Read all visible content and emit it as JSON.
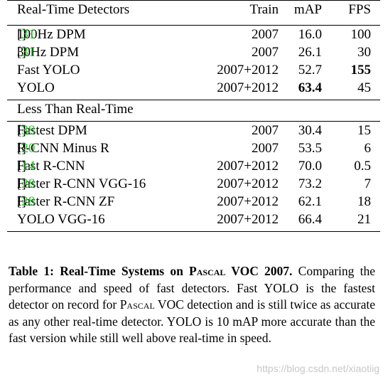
{
  "table": {
    "header": {
      "section": "Real-Time Detectors",
      "train": "Train",
      "map": "mAP",
      "fps": "FPS"
    },
    "section2_title": "Less Than Real-Time",
    "realtime_rows": [
      {
        "name": "100Hz DPM ",
        "ref": "31",
        "train": "2007",
        "map": "16.0",
        "fps": "100"
      },
      {
        "name": "30Hz DPM ",
        "ref": "31",
        "train": "2007",
        "map": "26.1",
        "fps": "30"
      },
      {
        "name": "Fast YOLO",
        "ref": "",
        "train": "2007+2012",
        "map": "52.7",
        "fps": "155"
      },
      {
        "name": "YOLO",
        "ref": "",
        "train": "2007+2012",
        "map": "63.4",
        "fps": "45"
      }
    ],
    "slow_rows": [
      {
        "name": "Fastest DPM ",
        "ref": "38",
        "train": "2007",
        "map": "30.4",
        "fps": "15"
      },
      {
        "name": "R-CNN Minus R ",
        "ref": "20",
        "train": "2007",
        "map": "53.5",
        "fps": "6"
      },
      {
        "name": "Fast R-CNN ",
        "ref": "14",
        "train": "2007+2012",
        "map": "70.0",
        "fps": "0.5"
      },
      {
        "name": "Faster R-CNN VGG-16",
        "ref": "28",
        "train": "2007+2012",
        "map": "73.2",
        "fps": "7"
      },
      {
        "name": "Faster R-CNN ZF ",
        "ref": "28",
        "train": "2007+2012",
        "map": "62.1",
        "fps": "18"
      },
      {
        "name": "YOLO VGG-16",
        "ref": "",
        "train": "2007+2012",
        "map": "66.4",
        "fps": "21"
      }
    ]
  },
  "caption": {
    "label": "Table 1:",
    "title_pre": " Real-Time Systems on ",
    "title_sc": "Pascal",
    "title_post": " VOC 2007.",
    "body_1": " Comparing the performance and speed of fast detectors. Fast YOLO is the fastest detector on record for ",
    "body_sc": "Pascal",
    "body_2": " VOC detection and is still twice as accurate as any other real-time detector. YOLO is 10 mAP more accurate than the fast version while still well above real-time in speed."
  },
  "watermark": "https://blog.csdn.net/xiaotiig"
}
